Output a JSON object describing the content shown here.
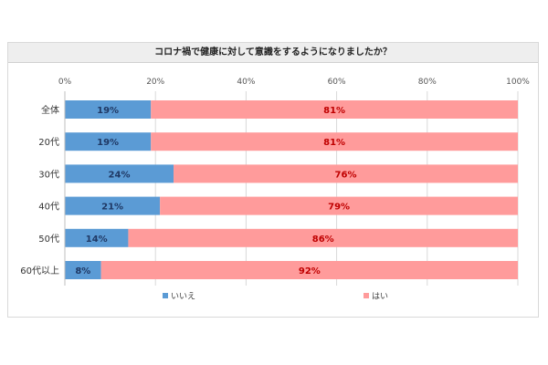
{
  "chart_data": {
    "type": "bar",
    "orientation": "horizontal",
    "stacked": true,
    "title": "コロナ禍で健康に対して意識をするようになりましたか？",
    "categories": [
      "全体",
      "20代",
      "30代",
      "40代",
      "50代",
      "60代以上"
    ],
    "series": [
      {
        "name": "いいえ",
        "color": "#5b9bd5",
        "label_color": "#1f3864",
        "values": [
          19,
          19,
          24,
          21,
          14,
          8
        ],
        "labels": [
          "19%",
          "19%",
          "24%",
          "21%",
          "14%",
          "8%"
        ]
      },
      {
        "name": "はい",
        "color": "#ff9b9b",
        "label_color": "#c00000",
        "values": [
          81,
          81,
          76,
          79,
          86,
          92
        ],
        "labels": [
          "81%",
          "81%",
          "76%",
          "79%",
          "86%",
          "92%"
        ]
      }
    ],
    "xlim": [
      0,
      100
    ],
    "xticks": [
      "0%",
      "20%",
      "40%",
      "60%",
      "80%",
      "100%"
    ],
    "grid": true,
    "legend_position": "bottom"
  }
}
